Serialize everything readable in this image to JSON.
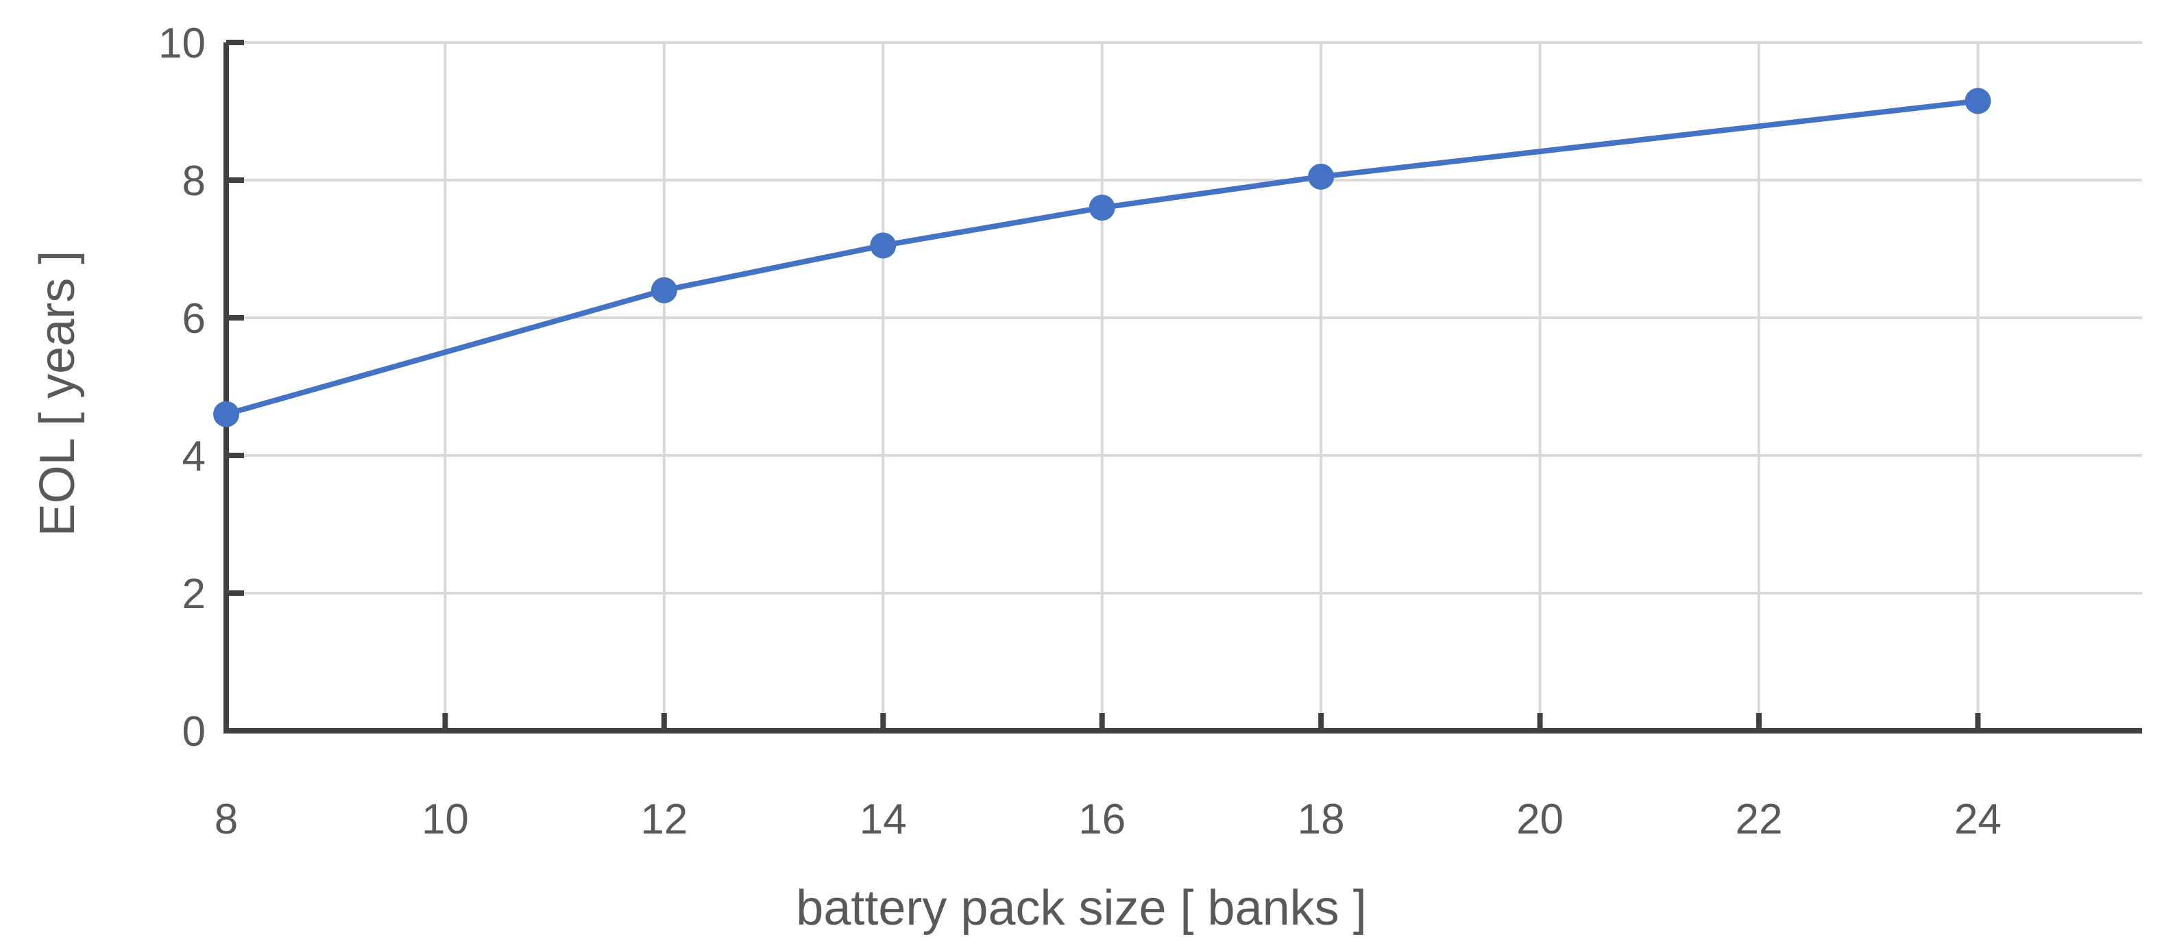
{
  "chart_data": {
    "type": "line",
    "title": "",
    "xlabel": "battery pack size    [ banks ]",
    "ylabel": "EOL  [ years ]",
    "xlim": [
      8,
      25.5
    ],
    "ylim": [
      0,
      10
    ],
    "xticks": [
      8,
      10,
      12,
      14,
      16,
      18,
      20,
      22,
      24
    ],
    "yticks": [
      0,
      2,
      4,
      6,
      8,
      10
    ],
    "grid": true,
    "legend": "none",
    "series": [
      {
        "color": "#4472C4",
        "x": [
          8,
          12,
          14,
          16,
          18,
          24
        ],
        "y": [
          4.6,
          6.4,
          7.05,
          7.6,
          8.05,
          9.15
        ]
      }
    ]
  }
}
